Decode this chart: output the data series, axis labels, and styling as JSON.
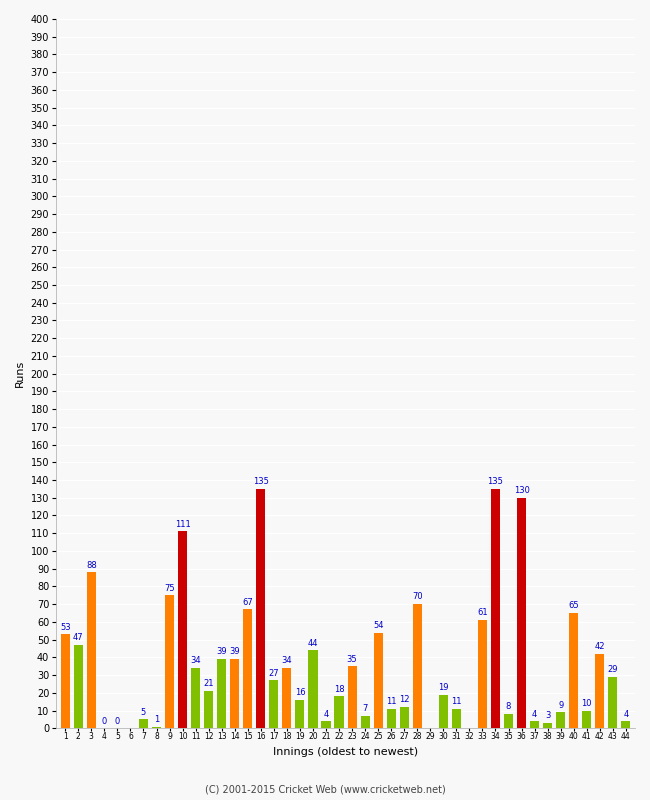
{
  "xlabel": "Innings (oldest to newest)",
  "ylabel": "Runs",
  "footer": "(C) 2001-2015 Cricket Web (www.cricketweb.net)",
  "ylim": [
    0,
    400
  ],
  "innings": [
    1,
    2,
    3,
    4,
    5,
    6,
    7,
    8,
    9,
    10,
    11,
    12,
    13,
    14,
    15,
    16,
    17,
    18,
    19,
    20,
    21,
    22,
    23,
    24,
    25,
    26,
    27,
    28,
    29,
    30,
    31,
    32,
    33,
    34,
    35,
    36,
    37,
    38,
    39,
    40,
    41,
    42,
    43,
    44
  ],
  "values": [
    53,
    47,
    88,
    0,
    0,
    0,
    5,
    1,
    75,
    111,
    34,
    21,
    39,
    39,
    67,
    135,
    27,
    34,
    16,
    44,
    4,
    18,
    35,
    7,
    54,
    11,
    12,
    70,
    0,
    19,
    11,
    0,
    61,
    135,
    8,
    130,
    4,
    3,
    9,
    65,
    10,
    42,
    29,
    4
  ],
  "colors": [
    "orange",
    "green",
    "orange",
    "orange",
    "orange",
    "orange",
    "green",
    "green",
    "orange",
    "red",
    "green",
    "green",
    "green",
    "orange",
    "orange",
    "red",
    "green",
    "orange",
    "green",
    "green",
    "green",
    "green",
    "orange",
    "green",
    "orange",
    "green",
    "green",
    "orange",
    "green",
    "green",
    "green",
    "green",
    "orange",
    "red",
    "green",
    "red",
    "green",
    "green",
    "green",
    "orange",
    "green",
    "orange",
    "green",
    "green"
  ],
  "show_zero": [
    3,
    4,
    5,
    28,
    31
  ],
  "bar_green_color": "#80c000",
  "bar_orange_color": "#ff8000",
  "bar_red_color": "#cc0000",
  "label_color": "#0000cc",
  "bg_color": "#f8f8f8",
  "plot_bg": "#f8f8f8",
  "grid_color": "#ffffff",
  "bar_width": 0.7
}
